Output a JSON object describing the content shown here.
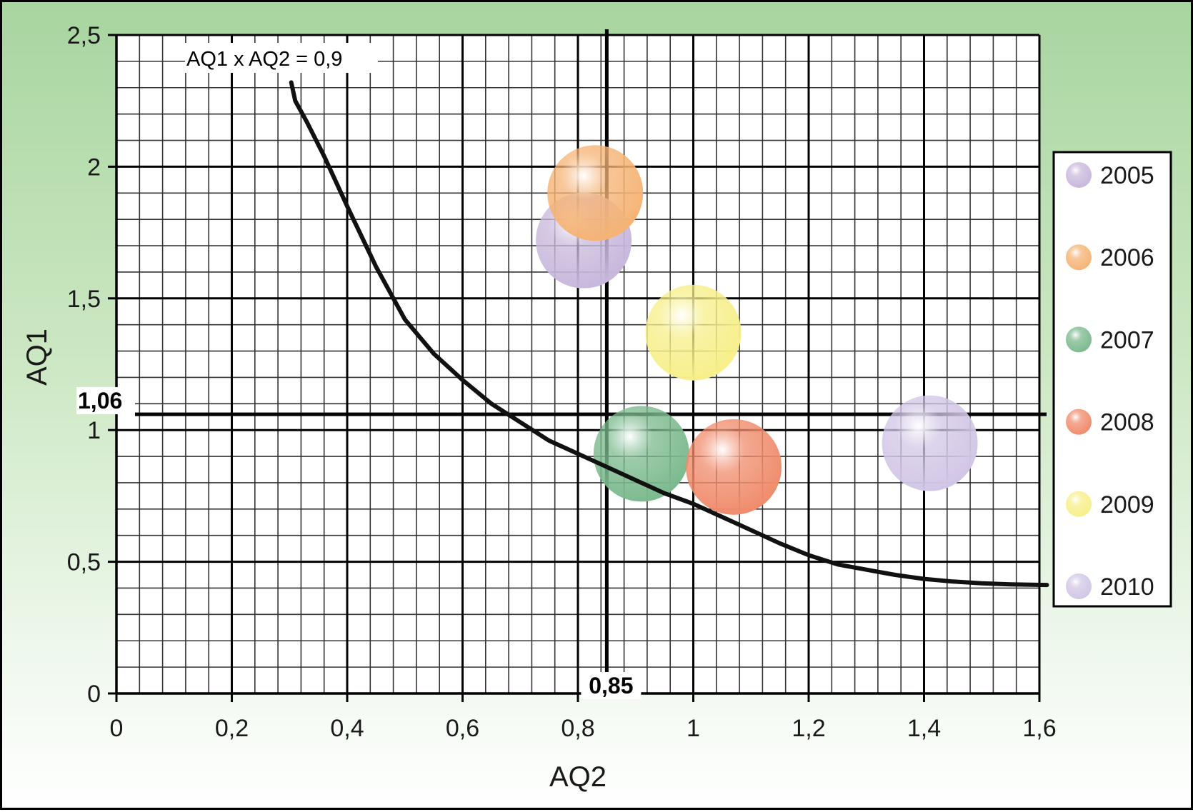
{
  "chart_data": {
    "type": "scatter",
    "title": "",
    "xlabel": "AQ2",
    "ylabel": "AQ1",
    "xlim": [
      0,
      1.6
    ],
    "ylim": [
      0,
      2.5
    ],
    "x_ticks": [
      "0",
      "0,2",
      "0,4",
      "0,6",
      "0,8",
      "1",
      "1,2",
      "1,4",
      "1,6"
    ],
    "x_tick_values": [
      0,
      0.2,
      0.4,
      0.6,
      0.8,
      1.0,
      1.2,
      1.4,
      1.6
    ],
    "y_ticks": [
      "0",
      "0,5",
      "1",
      "1,5",
      "2",
      "2,5"
    ],
    "y_tick_values": [
      0,
      0.5,
      1.0,
      1.5,
      2.0,
      2.5
    ],
    "grid": true,
    "minor_grid_step": {
      "x": 0.04,
      "y": 0.1
    },
    "reference_lines": [
      {
        "axis": "x",
        "value": 0.85,
        "label": "0,85"
      },
      {
        "axis": "y",
        "value": 1.06,
        "label": "1,06"
      }
    ],
    "curve": {
      "equation": "AQ1 x AQ2 = 0,9"
    },
    "legend_position": "right",
    "series": [
      {
        "name": "2005",
        "x": 0.81,
        "y": 1.72,
        "color": "#c8b8dc"
      },
      {
        "name": "2006",
        "x": 0.83,
        "y": 1.9,
        "color": "#f5b476"
      },
      {
        "name": "2007",
        "x": 0.91,
        "y": 0.91,
        "color": "#7cba8e"
      },
      {
        "name": "2008",
        "x": 1.07,
        "y": 0.86,
        "color": "#f08c6c"
      },
      {
        "name": "2009",
        "x": 1.0,
        "y": 1.37,
        "color": "#f7ef8a"
      },
      {
        "name": "2010",
        "x": 1.41,
        "y": 0.95,
        "color": "#d2c6e6"
      }
    ]
  }
}
